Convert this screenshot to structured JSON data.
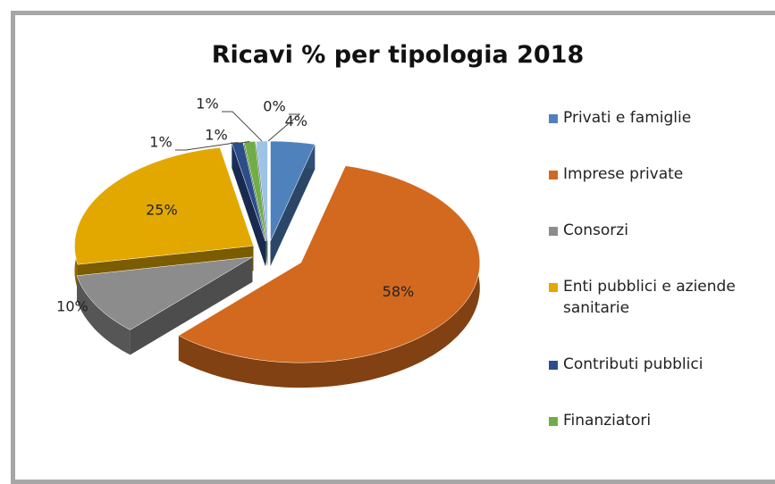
{
  "chart_data": {
    "type": "pie",
    "title": "Ricavi % per tipologia 2018",
    "categories": [
      "Privati e famiglie",
      "Imprese private",
      "Consorzi",
      "Enti pubblici e aziende sanitarie",
      "Contributi pubblici",
      "Finanziatori",
      null,
      null
    ],
    "values": [
      4,
      58,
      10,
      25,
      1,
      1,
      1,
      0
    ],
    "value_labels": [
      "4%",
      "58%",
      "10%",
      "25%",
      "1%",
      "1%",
      "1%",
      "0%"
    ],
    "colors": [
      "#4f81bd",
      "#d2691e",
      "#8c8c8c",
      "#e3a800",
      "#2c4d8c",
      "#70ad47",
      "#9dc3e6",
      "#f4b183"
    ],
    "legend": "right"
  }
}
